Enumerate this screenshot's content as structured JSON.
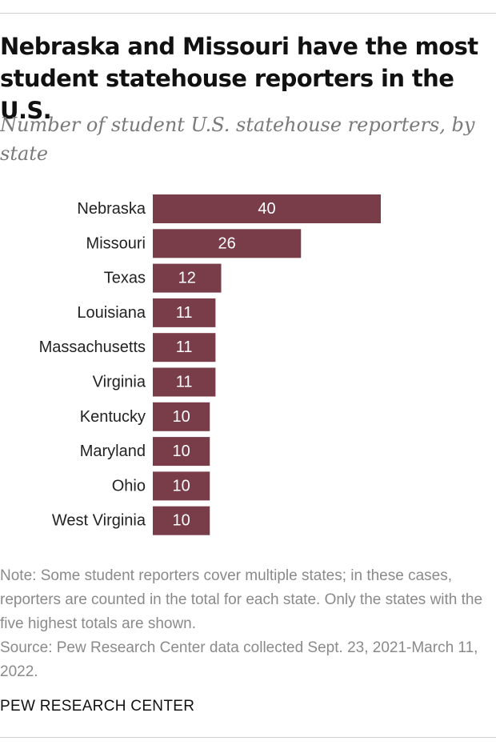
{
  "chart_data": {
    "type": "bar",
    "orientation": "horizontal",
    "title": "Nebraska and Missouri have the most student statehouse reporters in the U.S.",
    "subtitle": "Number of student U.S. statehouse reporters, by state",
    "categories": [
      "Nebraska",
      "Missouri",
      "Texas",
      "Louisiana",
      "Massachusetts",
      "Virginia",
      "Kentucky",
      "Maryland",
      "Ohio",
      "West Virginia"
    ],
    "values": [
      40,
      26,
      12,
      11,
      11,
      11,
      10,
      10,
      10,
      10
    ],
    "xlim": [
      0,
      40
    ],
    "grid": false,
    "data_labels": true,
    "bar_color": "#793d4a"
  },
  "note": "Note: Some student reporters cover multiple states; in these cases, reporters are counted in the total for each state. Only the states with the five highest totals are shown.",
  "source": "Source: Pew Research Center data collected Sept. 23, 2021-March 11, 2022.",
  "brand": "PEW RESEARCH CENTER"
}
